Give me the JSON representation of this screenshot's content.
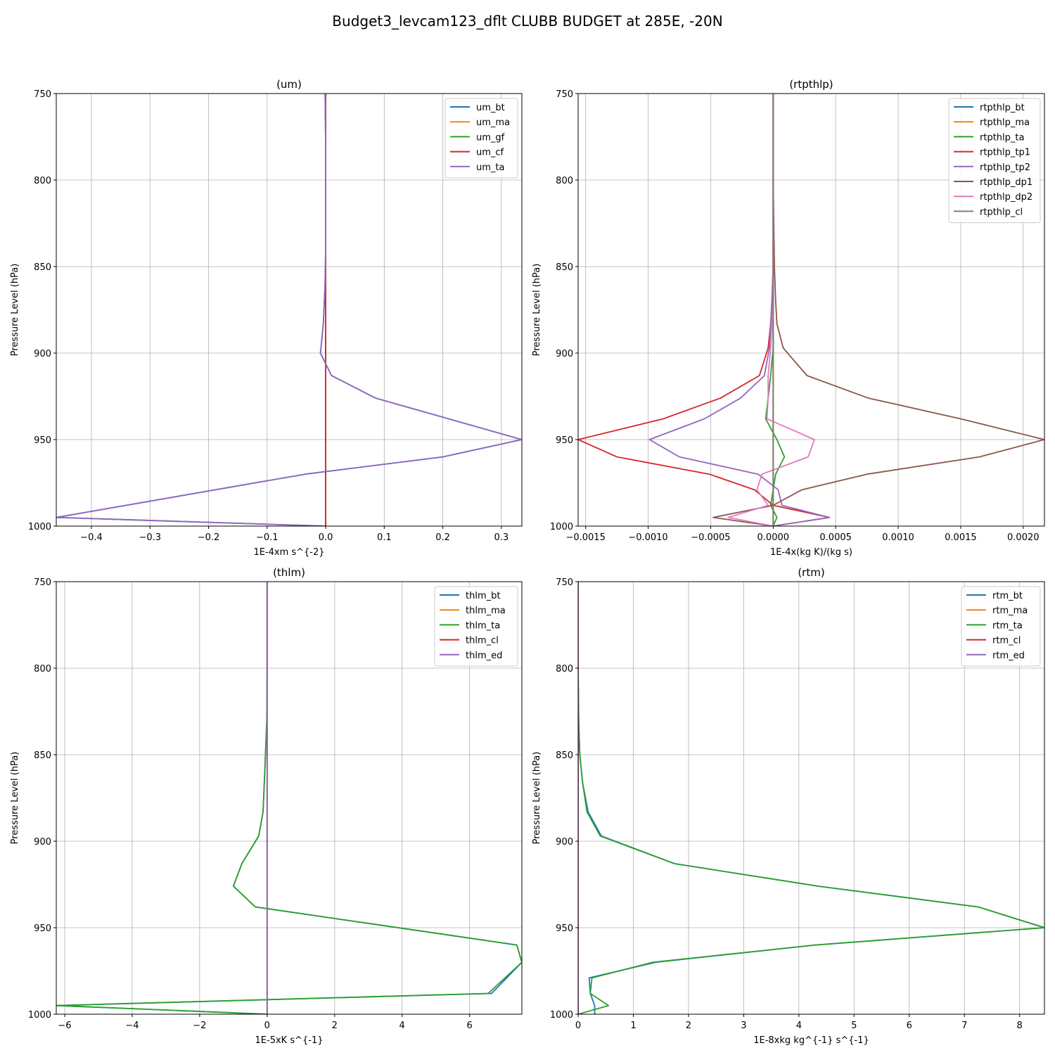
{
  "figure_title": "Budget3_levcam123_dflt CLUBB BUDGET at 285E, -20N",
  "colors": {
    "C0": "#1f77b4",
    "C1": "#ff7f0e",
    "C2": "#2ca02c",
    "C3": "#d62728",
    "C4": "#9467bd",
    "C5": "#8c564b",
    "C6": "#e377c2",
    "C7": "#7f7f7f"
  },
  "chart_data": [
    {
      "type": "line",
      "title": "(um)",
      "xlabel": "1E-4xm s^{-2}",
      "ylabel": "Pressure Level (hPa)",
      "xlim": [
        -0.46,
        0.335
      ],
      "ylim": [
        1000,
        750
      ],
      "grid": true,
      "legend_position": "top-right",
      "xticks": [
        -0.4,
        -0.3,
        -0.2,
        -0.1,
        0.0,
        0.1,
        0.2,
        0.3
      ],
      "xtick_labels": [
        "−0.4",
        "−0.3",
        "−0.2",
        "−0.1",
        "0.0",
        "0.1",
        "0.2",
        "0.3"
      ],
      "yticks": [
        750,
        800,
        850,
        900,
        950,
        1000
      ],
      "ytick_labels": [
        "750",
        "800",
        "850",
        "900",
        "950",
        "1000"
      ],
      "series": [
        {
          "name": "um_bt",
          "color": "#1f77b4",
          "x": [
            -0.001,
            0,
            0,
            0,
            -0.001,
            -0.004,
            -0.008,
            -0.009,
            0.01,
            0.085,
            0.335,
            0.2,
            -0.035,
            -0.46,
            0
          ],
          "y": [
            750,
            780,
            810,
            840,
            860,
            883,
            897,
            900,
            913,
            926,
            950,
            960,
            970,
            995,
            1000
          ]
        },
        {
          "name": "um_ma",
          "color": "#ff7f0e",
          "x": [
            0,
            0,
            0,
            0,
            0,
            0,
            0,
            0,
            0,
            0,
            0,
            0,
            0,
            0,
            0
          ],
          "y": [
            750,
            780,
            810,
            840,
            860,
            883,
            897,
            900,
            913,
            926,
            950,
            960,
            970,
            995,
            1000
          ]
        },
        {
          "name": "um_gf",
          "color": "#2ca02c",
          "x": [
            0,
            0,
            0,
            0,
            0,
            0,
            0,
            0,
            0,
            0,
            0,
            0,
            0,
            0,
            0
          ],
          "y": [
            750,
            780,
            810,
            840,
            860,
            883,
            897,
            900,
            913,
            926,
            950,
            960,
            970,
            995,
            1000
          ]
        },
        {
          "name": "um_cf",
          "color": "#d62728",
          "x": [
            0,
            0,
            0,
            0,
            0,
            0,
            0,
            0,
            0,
            0,
            0,
            0,
            0,
            0,
            0
          ],
          "y": [
            750,
            780,
            810,
            840,
            860,
            883,
            897,
            900,
            913,
            926,
            950,
            960,
            970,
            995,
            1000
          ]
        },
        {
          "name": "um_ta",
          "color": "#9467bd",
          "x": [
            -0.001,
            0,
            0,
            0,
            -0.001,
            -0.004,
            -0.008,
            -0.009,
            0.01,
            0.085,
            0.335,
            0.2,
            -0.035,
            -0.46,
            0
          ],
          "y": [
            750,
            780,
            810,
            840,
            860,
            883,
            897,
            900,
            913,
            926,
            950,
            960,
            970,
            995,
            1000
          ]
        }
      ]
    },
    {
      "type": "line",
      "title": "(rtpthlp)",
      "xlabel": "1E-4x(kg K)/(kg s)",
      "ylabel": "Pressure Level (hPa)",
      "xlim": [
        -0.00156,
        0.00217
      ],
      "ylim": [
        1000,
        750
      ],
      "grid": true,
      "legend_position": "top-right",
      "xticks": [
        -0.0015,
        -0.001,
        -0.0005,
        0.0,
        0.0005,
        0.001,
        0.0015,
        0.002
      ],
      "xtick_labels": [
        "−0.0015",
        "−0.0010",
        "−0.0005",
        "0.0000",
        "0.0005",
        "0.0010",
        "0.0015",
        "0.0020"
      ],
      "yticks": [
        750,
        800,
        850,
        900,
        950,
        1000
      ],
      "ytick_labels": [
        "750",
        "800",
        "850",
        "900",
        "950",
        "1000"
      ],
      "series": [
        {
          "name": "rtpthlp_bt",
          "color": "#1f77b4",
          "x": [
            0,
            0,
            0,
            0,
            0,
            0,
            0,
            0,
            0,
            0,
            0,
            0,
            0,
            0,
            0,
            0,
            0
          ],
          "y": [
            750,
            800,
            850,
            870,
            883,
            897,
            913,
            926,
            938,
            950,
            960,
            970,
            979,
            988,
            995,
            1000,
            1000
          ]
        },
        {
          "name": "rtpthlp_ma",
          "color": "#ff7f0e",
          "x": [
            0,
            0,
            0,
            0,
            0,
            0,
            0,
            0,
            0,
            0,
            0,
            0,
            0,
            0,
            0,
            0,
            0
          ],
          "y": [
            750,
            800,
            850,
            870,
            883,
            897,
            913,
            926,
            938,
            950,
            960,
            970,
            979,
            988,
            995,
            1000,
            1000
          ]
        },
        {
          "name": "rtpthlp_ta",
          "color": "#2ca02c",
          "x": [
            0,
            0,
            0,
            0,
            0,
            0,
            -2e-05,
            -4e-05,
            -6e-05,
            3e-05,
            9e-05,
            2e-05,
            0,
            -2e-05,
            3e-05,
            0,
            0
          ],
          "y": [
            750,
            800,
            850,
            870,
            883,
            897,
            913,
            926,
            938,
            950,
            960,
            970,
            979,
            988,
            995,
            1000,
            1000
          ]
        },
        {
          "name": "rtpthlp_tp1",
          "color": "#d62728",
          "x": [
            0,
            0,
            0,
            -1e-05,
            -2e-05,
            -4e-05,
            -0.00011,
            -0.00042,
            -0.00088,
            -0.00156,
            -0.00125,
            -0.00051,
            -0.00015,
            0,
            0.00045,
            0,
            0
          ],
          "y": [
            750,
            800,
            850,
            870,
            883,
            897,
            913,
            926,
            938,
            950,
            960,
            970,
            979,
            988,
            995,
            1000,
            1000
          ]
        },
        {
          "name": "rtpthlp_tp2",
          "color": "#9467bd",
          "x": [
            0,
            0,
            0,
            -1e-05,
            -2e-05,
            -3e-05,
            -7e-05,
            -0.00026,
            -0.00055,
            -0.00099,
            -0.00075,
            -0.00012,
            4e-05,
            7e-05,
            0.00045,
            0,
            0
          ],
          "y": [
            750,
            800,
            850,
            870,
            883,
            897,
            913,
            926,
            938,
            950,
            960,
            970,
            979,
            988,
            995,
            1000,
            1000
          ]
        },
        {
          "name": "rtpthlp_dp1",
          "color": "#8c564b",
          "x": [
            0,
            0,
            1e-05,
            2e-05,
            3e-05,
            8e-05,
            0.00027,
            0.00076,
            0.0015,
            0.00217,
            0.00165,
            0.00075,
            0.00023,
            0,
            -0.00048,
            0,
            0
          ],
          "y": [
            750,
            800,
            850,
            870,
            883,
            897,
            913,
            926,
            938,
            950,
            960,
            970,
            979,
            988,
            995,
            1000,
            1000
          ]
        },
        {
          "name": "rtpthlp_dp2",
          "color": "#e377c2",
          "x": [
            0,
            0,
            0,
            0,
            -1e-05,
            -2e-05,
            -4e-05,
            -4e-05,
            -5e-05,
            0.00033,
            0.00028,
            -9e-05,
            -0.00013,
            -4e-05,
            -0.00036,
            0,
            0
          ],
          "y": [
            750,
            800,
            850,
            870,
            883,
            897,
            913,
            926,
            938,
            950,
            960,
            970,
            979,
            988,
            995,
            1000,
            1000
          ]
        },
        {
          "name": "rtpthlp_cl",
          "color": "#7f7f7f",
          "x": [
            0,
            0,
            0,
            0,
            0,
            0,
            0,
            0,
            0,
            0,
            0,
            0,
            0,
            0,
            0,
            0,
            0
          ],
          "y": [
            750,
            800,
            850,
            870,
            883,
            897,
            913,
            926,
            938,
            950,
            960,
            970,
            979,
            988,
            995,
            1000,
            1000
          ]
        }
      ]
    },
    {
      "type": "line",
      "title": "(thlm)",
      "xlabel": "1E-5xK s^{-1}",
      "ylabel": "Pressure Level (hPa)",
      "xlim": [
        -6.25,
        7.55
      ],
      "ylim": [
        1000,
        750
      ],
      "grid": true,
      "legend_position": "top-right",
      "xticks": [
        -6,
        -4,
        -2,
        0,
        2,
        4,
        6
      ],
      "xtick_labels": [
        "−6",
        "−4",
        "−2",
        "0",
        "2",
        "4",
        "6"
      ],
      "yticks": [
        750,
        800,
        850,
        900,
        950,
        1000
      ],
      "ytick_labels": [
        "750",
        "800",
        "850",
        "900",
        "950",
        "1000"
      ],
      "series": [
        {
          "name": "thlm_bt",
          "color": "#1f77b4",
          "x": [
            0,
            0,
            -0.01,
            -0.05,
            -0.12,
            -0.25,
            -0.75,
            -1.0,
            -0.35,
            7.4,
            7.55,
            6.65,
            -6.25,
            0
          ],
          "y": [
            750,
            800,
            830,
            850,
            883,
            897,
            913,
            926,
            938,
            960,
            970,
            988,
            995,
            1000
          ]
        },
        {
          "name": "thlm_ma",
          "color": "#ff7f0e",
          "x": [
            0,
            0,
            0,
            0,
            0,
            0,
            0,
            0,
            0,
            0,
            0,
            0,
            0,
            0
          ],
          "y": [
            750,
            800,
            830,
            850,
            883,
            897,
            913,
            926,
            938,
            960,
            970,
            988,
            995,
            1000
          ]
        },
        {
          "name": "thlm_ta",
          "color": "#2ca02c",
          "x": [
            0,
            0,
            -0.01,
            -0.05,
            -0.12,
            -0.25,
            -0.75,
            -1.0,
            -0.35,
            7.4,
            7.55,
            6.55,
            -6.25,
            0
          ],
          "y": [
            750,
            800,
            830,
            850,
            883,
            897,
            913,
            926,
            938,
            960,
            970,
            988,
            995,
            1000
          ]
        },
        {
          "name": "thlm_cl",
          "color": "#d62728",
          "x": [
            0,
            0,
            0,
            0,
            0,
            0,
            0,
            0,
            0,
            0,
            0,
            0,
            0,
            0
          ],
          "y": [
            750,
            800,
            830,
            850,
            883,
            897,
            913,
            926,
            938,
            960,
            970,
            988,
            995,
            1000
          ]
        },
        {
          "name": "thlm_ed",
          "color": "#9467bd",
          "x": [
            0,
            0,
            0,
            0,
            0,
            0,
            0,
            0,
            0,
            0,
            0,
            0,
            0,
            0
          ],
          "y": [
            750,
            800,
            830,
            850,
            883,
            897,
            913,
            926,
            938,
            960,
            970,
            988,
            995,
            1000
          ]
        }
      ]
    },
    {
      "type": "line",
      "title": "(rtm)",
      "xlabel": "1E-8xkg kg^{-1} s^{-1}",
      "ylabel": "Pressure Level (hPa)",
      "xlim": [
        0,
        8.45
      ],
      "ylim": [
        1000,
        750
      ],
      "grid": true,
      "legend_position": "top-right",
      "xticks": [
        0,
        1,
        2,
        3,
        4,
        5,
        6,
        7,
        8
      ],
      "xtick_labels": [
        "0",
        "1",
        "2",
        "3",
        "4",
        "5",
        "6",
        "7",
        "8"
      ],
      "yticks": [
        750,
        800,
        850,
        900,
        950,
        1000
      ],
      "ytick_labels": [
        "750",
        "800",
        "850",
        "900",
        "950",
        "1000"
      ],
      "series": [
        {
          "name": "rtm_bt",
          "color": "#1f77b4",
          "x": [
            0,
            0,
            0.01,
            0.03,
            0.08,
            0.18,
            0.42,
            1.75,
            4.35,
            7.25,
            8.45,
            4.3,
            1.4,
            0.2,
            0.22,
            0.3,
            0.3
          ],
          "y": [
            750,
            800,
            830,
            850,
            866,
            883,
            897,
            913,
            926,
            938,
            950,
            960,
            970,
            979,
            988,
            995,
            1000
          ]
        },
        {
          "name": "rtm_ma",
          "color": "#ff7f0e",
          "x": [
            0,
            0,
            0,
            0,
            0,
            0,
            0,
            0,
            0,
            0,
            0,
            0,
            0,
            0,
            0,
            0,
            0
          ],
          "y": [
            750,
            800,
            830,
            850,
            866,
            883,
            897,
            913,
            926,
            938,
            950,
            960,
            970,
            979,
            988,
            995,
            1000
          ]
        },
        {
          "name": "rtm_ta",
          "color": "#2ca02c",
          "x": [
            0,
            0,
            0.01,
            0.03,
            0.08,
            0.16,
            0.4,
            1.75,
            4.35,
            7.25,
            8.45,
            4.3,
            1.35,
            0.25,
            0.22,
            0.55,
            0
          ],
          "y": [
            750,
            800,
            830,
            850,
            866,
            883,
            897,
            913,
            926,
            938,
            950,
            960,
            970,
            979,
            988,
            995,
            1000
          ]
        },
        {
          "name": "rtm_cl",
          "color": "#d62728",
          "x": [
            0,
            0,
            0,
            0,
            0,
            0,
            0,
            0,
            0,
            0,
            0,
            0,
            0,
            0,
            0,
            0,
            0
          ],
          "y": [
            750,
            800,
            830,
            850,
            866,
            883,
            897,
            913,
            926,
            938,
            950,
            960,
            970,
            979,
            988,
            995,
            1000
          ]
        },
        {
          "name": "rtm_ed",
          "color": "#9467bd",
          "x": [
            0,
            0,
            0,
            0,
            0,
            0,
            0,
            0,
            0,
            0,
            0,
            0,
            0,
            0,
            0,
            0,
            0
          ],
          "y": [
            750,
            800,
            830,
            850,
            866,
            883,
            897,
            913,
            926,
            938,
            950,
            960,
            970,
            979,
            988,
            995,
            1000
          ]
        }
      ]
    }
  ]
}
